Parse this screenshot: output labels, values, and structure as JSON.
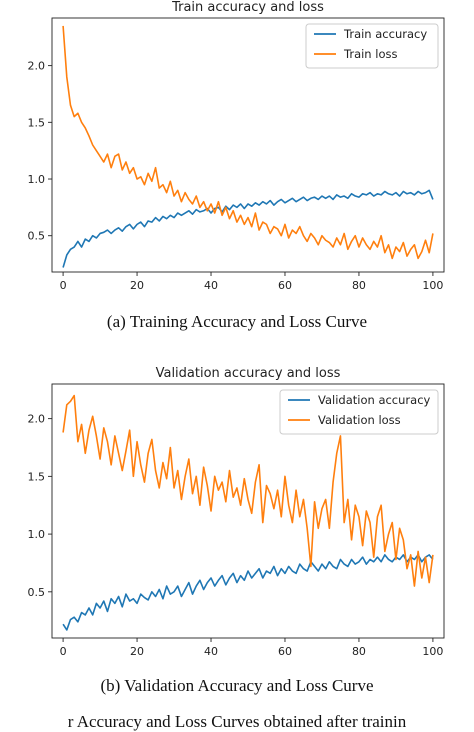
{
  "captions": {
    "a": "(a) Training Accuracy and Loss Curve",
    "b": "(b) Validation Accuracy and Loss Curve",
    "bottom_partial": "r Accuracy and Loss Curves obtained after trainin"
  },
  "colors": {
    "accuracy": "#1f77b4",
    "loss": "#ff7f0e"
  },
  "chart_data": [
    {
      "type": "line",
      "title": "Train accuracy and loss",
      "xlabel": "",
      "ylabel": "",
      "xlim": [
        -3,
        103
      ],
      "ylim": [
        0.18,
        2.42
      ],
      "xticks": [
        0,
        20,
        40,
        60,
        80,
        100
      ],
      "yticks": [
        0.5,
        1.0,
        1.5,
        2.0
      ],
      "ytick_labels": [
        "0.5",
        "1.0",
        "1.5",
        "2.0"
      ],
      "legend_position": "top-right",
      "grid": false,
      "series": [
        {
          "name": "Train accuracy",
          "color": "#1f77b4",
          "x": [
            0,
            1,
            2,
            3,
            4,
            5,
            6,
            7,
            8,
            9,
            10,
            11,
            12,
            13,
            14,
            15,
            16,
            17,
            18,
            19,
            20,
            21,
            22,
            23,
            24,
            25,
            26,
            27,
            28,
            29,
            30,
            31,
            32,
            33,
            34,
            35,
            36,
            37,
            38,
            39,
            40,
            41,
            42,
            43,
            44,
            45,
            46,
            47,
            48,
            49,
            50,
            51,
            52,
            53,
            54,
            55,
            56,
            57,
            58,
            59,
            60,
            61,
            62,
            63,
            64,
            65,
            66,
            67,
            68,
            69,
            70,
            71,
            72,
            73,
            74,
            75,
            76,
            77,
            78,
            79,
            80,
            81,
            82,
            83,
            84,
            85,
            86,
            87,
            88,
            89,
            90,
            91,
            92,
            93,
            94,
            95,
            96,
            97,
            98,
            99,
            100
          ],
          "y": [
            0.22,
            0.33,
            0.38,
            0.4,
            0.45,
            0.4,
            0.47,
            0.45,
            0.5,
            0.48,
            0.52,
            0.53,
            0.55,
            0.52,
            0.55,
            0.57,
            0.54,
            0.58,
            0.6,
            0.56,
            0.6,
            0.62,
            0.58,
            0.63,
            0.62,
            0.66,
            0.63,
            0.67,
            0.65,
            0.68,
            0.66,
            0.7,
            0.68,
            0.7,
            0.72,
            0.69,
            0.73,
            0.71,
            0.72,
            0.74,
            0.7,
            0.74,
            0.75,
            0.71,
            0.76,
            0.73,
            0.77,
            0.75,
            0.78,
            0.74,
            0.78,
            0.76,
            0.79,
            0.77,
            0.8,
            0.78,
            0.81,
            0.77,
            0.8,
            0.82,
            0.79,
            0.81,
            0.83,
            0.8,
            0.82,
            0.84,
            0.81,
            0.83,
            0.84,
            0.82,
            0.85,
            0.83,
            0.85,
            0.82,
            0.86,
            0.84,
            0.85,
            0.83,
            0.87,
            0.85,
            0.84,
            0.87,
            0.86,
            0.88,
            0.85,
            0.87,
            0.86,
            0.89,
            0.87,
            0.86,
            0.88,
            0.85,
            0.89,
            0.87,
            0.88,
            0.86,
            0.89,
            0.87,
            0.88,
            0.9,
            0.82
          ]
        },
        {
          "name": "Train loss",
          "color": "#ff7f0e",
          "x": [
            0,
            1,
            2,
            3,
            4,
            5,
            6,
            7,
            8,
            9,
            10,
            11,
            12,
            13,
            14,
            15,
            16,
            17,
            18,
            19,
            20,
            21,
            22,
            23,
            24,
            25,
            26,
            27,
            28,
            29,
            30,
            31,
            32,
            33,
            34,
            35,
            36,
            37,
            38,
            39,
            40,
            41,
            42,
            43,
            44,
            45,
            46,
            47,
            48,
            49,
            50,
            51,
            52,
            53,
            54,
            55,
            56,
            57,
            58,
            59,
            60,
            61,
            62,
            63,
            64,
            65,
            66,
            67,
            68,
            69,
            70,
            71,
            72,
            73,
            74,
            75,
            76,
            77,
            78,
            79,
            80,
            81,
            82,
            83,
            84,
            85,
            86,
            87,
            88,
            89,
            90,
            91,
            92,
            93,
            94,
            95,
            96,
            97,
            98,
            99,
            100
          ],
          "y": [
            2.35,
            1.9,
            1.65,
            1.55,
            1.58,
            1.5,
            1.45,
            1.38,
            1.3,
            1.25,
            1.2,
            1.15,
            1.22,
            1.1,
            1.2,
            1.22,
            1.08,
            1.15,
            1.05,
            1.1,
            1.0,
            1.02,
            0.95,
            1.05,
            0.98,
            1.1,
            0.92,
            0.95,
            0.88,
            0.98,
            0.85,
            0.9,
            0.8,
            0.88,
            0.82,
            0.78,
            0.85,
            0.75,
            0.8,
            0.72,
            0.78,
            0.7,
            0.8,
            0.68,
            0.75,
            0.65,
            0.72,
            0.62,
            0.68,
            0.6,
            0.66,
            0.58,
            0.7,
            0.55,
            0.62,
            0.6,
            0.52,
            0.58,
            0.56,
            0.5,
            0.6,
            0.48,
            0.55,
            0.52,
            0.58,
            0.5,
            0.45,
            0.52,
            0.48,
            0.42,
            0.5,
            0.46,
            0.44,
            0.4,
            0.48,
            0.42,
            0.52,
            0.38,
            0.45,
            0.5,
            0.4,
            0.48,
            0.42,
            0.38,
            0.45,
            0.4,
            0.5,
            0.35,
            0.42,
            0.3,
            0.4,
            0.36,
            0.44,
            0.32,
            0.38,
            0.42,
            0.3,
            0.36,
            0.46,
            0.35,
            0.52
          ]
        }
      ]
    },
    {
      "type": "line",
      "title": "Validation accuracy and loss",
      "xlabel": "",
      "ylabel": "",
      "xlim": [
        -3,
        103
      ],
      "ylim": [
        0.1,
        2.3
      ],
      "xticks": [
        0,
        20,
        40,
        60,
        80,
        100
      ],
      "yticks": [
        0.5,
        1.0,
        1.5,
        2.0
      ],
      "ytick_labels": [
        "0.5",
        "1.0",
        "1.5",
        "2.0"
      ],
      "legend_position": "top-right",
      "grid": false,
      "series": [
        {
          "name": "Validation accuracy",
          "color": "#1f77b4",
          "x": [
            0,
            1,
            2,
            3,
            4,
            5,
            6,
            7,
            8,
            9,
            10,
            11,
            12,
            13,
            14,
            15,
            16,
            17,
            18,
            19,
            20,
            21,
            22,
            23,
            24,
            25,
            26,
            27,
            28,
            29,
            30,
            31,
            32,
            33,
            34,
            35,
            36,
            37,
            38,
            39,
            40,
            41,
            42,
            43,
            44,
            45,
            46,
            47,
            48,
            49,
            50,
            51,
            52,
            53,
            54,
            55,
            56,
            57,
            58,
            59,
            60,
            61,
            62,
            63,
            64,
            65,
            66,
            67,
            68,
            69,
            70,
            71,
            72,
            73,
            74,
            75,
            76,
            77,
            78,
            79,
            80,
            81,
            82,
            83,
            84,
            85,
            86,
            87,
            88,
            89,
            90,
            91,
            92,
            93,
            94,
            95,
            96,
            97,
            98,
            99,
            100
          ],
          "y": [
            0.22,
            0.17,
            0.26,
            0.28,
            0.24,
            0.32,
            0.3,
            0.36,
            0.3,
            0.4,
            0.36,
            0.42,
            0.33,
            0.44,
            0.4,
            0.46,
            0.37,
            0.48,
            0.42,
            0.44,
            0.4,
            0.48,
            0.45,
            0.43,
            0.5,
            0.46,
            0.52,
            0.44,
            0.55,
            0.48,
            0.5,
            0.55,
            0.46,
            0.52,
            0.58,
            0.48,
            0.55,
            0.6,
            0.52,
            0.58,
            0.62,
            0.55,
            0.6,
            0.64,
            0.56,
            0.62,
            0.66,
            0.58,
            0.64,
            0.6,
            0.68,
            0.62,
            0.66,
            0.7,
            0.62,
            0.68,
            0.66,
            0.72,
            0.64,
            0.7,
            0.66,
            0.72,
            0.68,
            0.66,
            0.74,
            0.7,
            0.68,
            0.76,
            0.72,
            0.68,
            0.74,
            0.7,
            0.76,
            0.72,
            0.7,
            0.78,
            0.74,
            0.72,
            0.78,
            0.74,
            0.76,
            0.8,
            0.74,
            0.78,
            0.76,
            0.8,
            0.76,
            0.82,
            0.78,
            0.76,
            0.8,
            0.78,
            0.82,
            0.76,
            0.8,
            0.78,
            0.82,
            0.76,
            0.8,
            0.82,
            0.78
          ]
        },
        {
          "name": "Validation loss",
          "color": "#ff7f0e",
          "x": [
            0,
            1,
            2,
            3,
            4,
            5,
            6,
            7,
            8,
            9,
            10,
            11,
            12,
            13,
            14,
            15,
            16,
            17,
            18,
            19,
            20,
            21,
            22,
            23,
            24,
            25,
            26,
            27,
            28,
            29,
            30,
            31,
            32,
            33,
            34,
            35,
            36,
            37,
            38,
            39,
            40,
            41,
            42,
            43,
            44,
            45,
            46,
            47,
            48,
            49,
            50,
            51,
            52,
            53,
            54,
            55,
            56,
            57,
            58,
            59,
            60,
            61,
            62,
            63,
            64,
            65,
            66,
            67,
            68,
            69,
            70,
            71,
            72,
            73,
            74,
            75,
            76,
            77,
            78,
            79,
            80,
            81,
            82,
            83,
            84,
            85,
            86,
            87,
            88,
            89,
            90,
            91,
            92,
            93,
            94,
            95,
            96,
            97,
            98,
            99,
            100
          ],
          "y": [
            1.88,
            2.12,
            2.15,
            2.2,
            1.8,
            1.95,
            1.7,
            1.9,
            2.02,
            1.85,
            1.65,
            1.92,
            1.8,
            1.6,
            1.85,
            1.7,
            1.55,
            1.72,
            1.9,
            1.5,
            1.8,
            1.6,
            1.45,
            1.7,
            1.82,
            1.55,
            1.4,
            1.62,
            1.48,
            1.75,
            1.4,
            1.55,
            1.3,
            1.5,
            1.65,
            1.35,
            1.5,
            1.25,
            1.58,
            1.42,
            1.2,
            1.5,
            1.38,
            1.45,
            1.28,
            1.55,
            1.32,
            1.4,
            1.25,
            1.48,
            1.3,
            1.18,
            1.45,
            1.6,
            1.1,
            1.42,
            1.35,
            1.22,
            1.38,
            1.15,
            1.5,
            1.25,
            1.1,
            1.38,
            1.15,
            1.3,
            1.05,
            0.72,
            1.28,
            1.05,
            1.22,
            1.3,
            1.05,
            1.45,
            1.7,
            1.85,
            1.1,
            1.3,
            0.95,
            1.25,
            1.15,
            0.9,
            1.2,
            1.1,
            0.8,
            1.15,
            1.25,
            0.85,
            1.0,
            1.1,
            0.78,
            1.05,
            0.95,
            0.7,
            0.82,
            0.55,
            0.85,
            0.62,
            0.8,
            0.58,
            0.82
          ]
        }
      ]
    }
  ]
}
